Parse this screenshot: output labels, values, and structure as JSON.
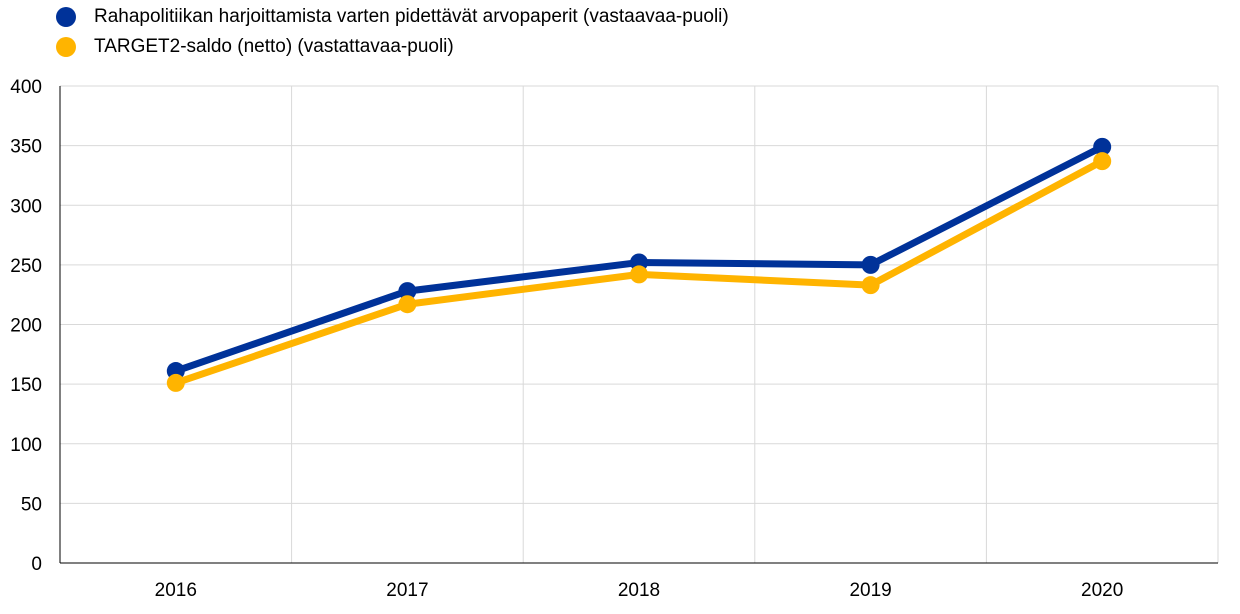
{
  "chart_data": {
    "type": "line",
    "title": "",
    "xlabel": "",
    "ylabel": "",
    "categories": [
      "2016",
      "2017",
      "2018",
      "2019",
      "2020"
    ],
    "ylim": [
      0,
      400
    ],
    "yticks": [
      0,
      50,
      100,
      150,
      200,
      250,
      300,
      350,
      400
    ],
    "grid": true,
    "legend_position": "top-left",
    "series": [
      {
        "name": "Rahapolitiikan harjoittamista varten pidettävät arvopaperit (vastaavaa-puoli)",
        "color": "#003299",
        "values": [
          161,
          228,
          252,
          250,
          349
        ]
      },
      {
        "name": "TARGET2-saldo (netto) (vastattavaa-puoli)",
        "color": "#FFB400",
        "values": [
          151,
          217,
          242,
          233,
          337
        ]
      }
    ]
  }
}
